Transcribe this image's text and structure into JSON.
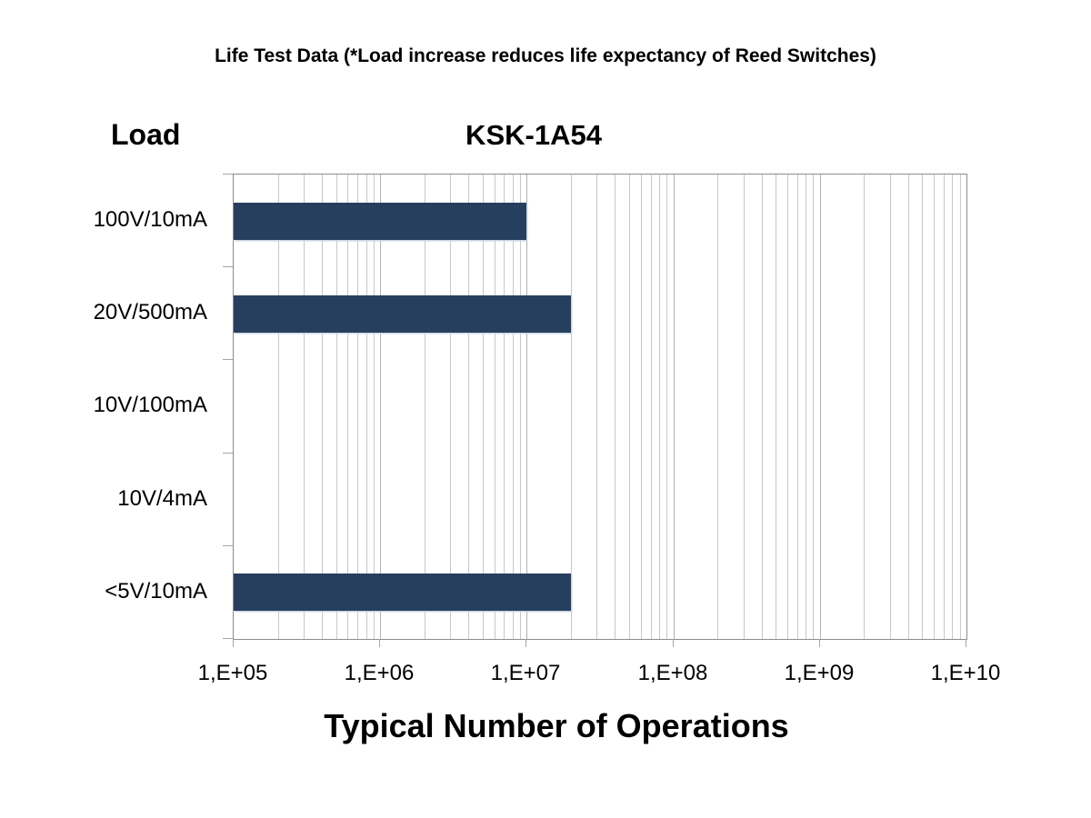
{
  "header": {
    "title": "Life Test Data (*Load increase reduces life expectancy of Reed Switches)"
  },
  "chart_data": {
    "type": "bar",
    "orientation": "horizontal",
    "title": "KSK-1A54",
    "xlabel": "Typical Number of Operations",
    "ylabel": "Load",
    "categories": [
      "100V/10mA",
      "20V/500mA",
      "10V/100mA",
      "10V/4mA",
      "<5V/10mA"
    ],
    "values": [
      10000000,
      20000000,
      0,
      0,
      20000000
    ],
    "x_scale": "log",
    "xlim": [
      100000,
      10000000000
    ],
    "x_tick_labels": [
      "1,E+05",
      "1,E+06",
      "1,E+07",
      "1,E+08",
      "1,E+09",
      "1,E+10"
    ],
    "grid": "vertical log gridlines (major + minor)",
    "legend": "none",
    "bar_height_fraction": 0.4,
    "colors": {
      "bar": "#263f5e",
      "bar_edge": "#ccd5e3",
      "gridline_minor": "#c8c8c8",
      "gridline_major": "#b2b2b2",
      "axis_border": "#8c8c8c",
      "tick": "#a6a6a6",
      "text": "#000000",
      "background": "#ffffff"
    }
  }
}
